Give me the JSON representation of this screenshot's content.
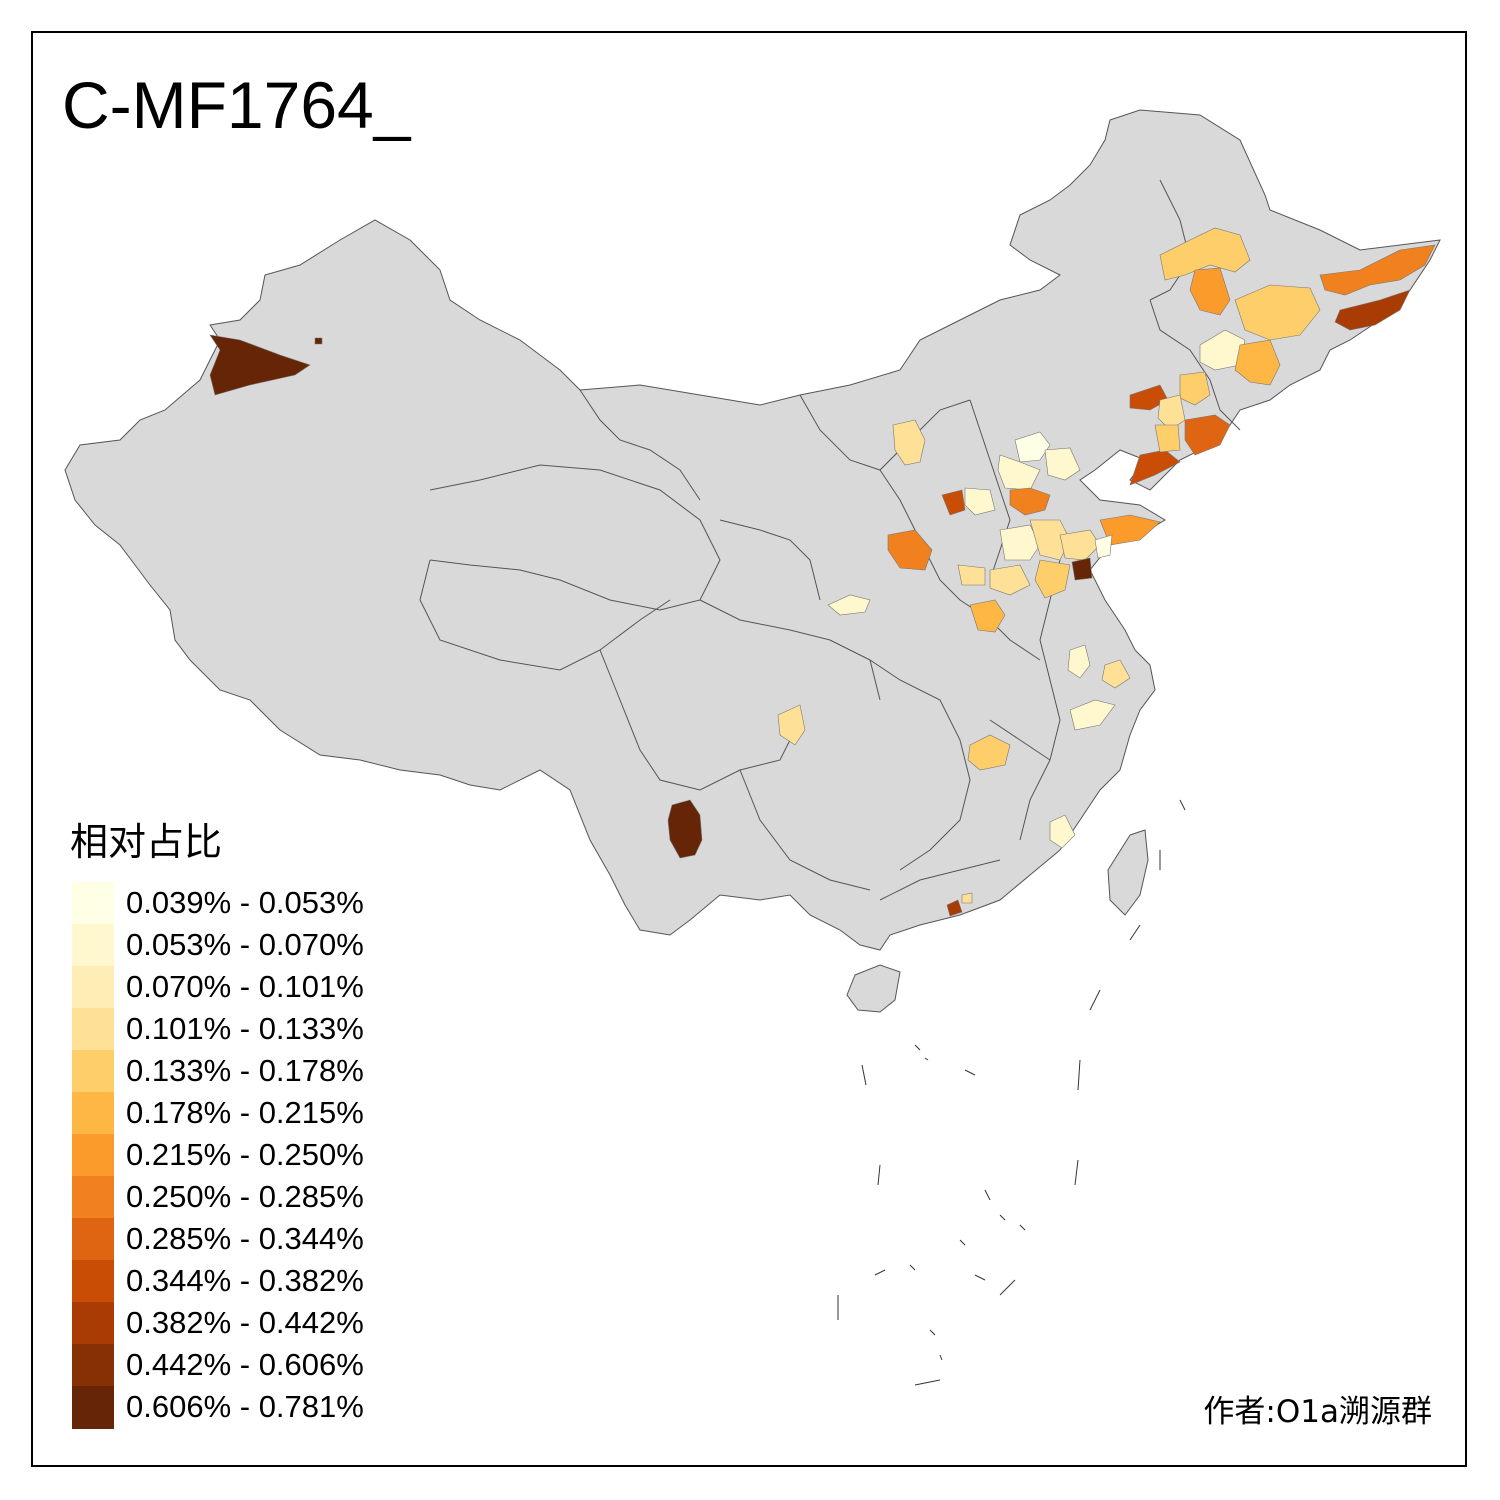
{
  "title": "C-MF1764_",
  "legend": {
    "title": "相对占比",
    "items": [
      {
        "label": "0.039% - 0.053%",
        "color": "#FFFFE5"
      },
      {
        "label": "0.053% - 0.070%",
        "color": "#FFF7CD"
      },
      {
        "label": "0.070% - 0.101%",
        "color": "#FEEDB4"
      },
      {
        "label": "0.101% - 0.133%",
        "color": "#FEE196"
      },
      {
        "label": "0.133% - 0.178%",
        "color": "#FECE6A"
      },
      {
        "label": "0.178% - 0.215%",
        "color": "#FEB645"
      },
      {
        "label": "0.215% - 0.250%",
        "color": "#FB9B2C"
      },
      {
        "label": "0.250% - 0.285%",
        "color": "#F0811E"
      },
      {
        "label": "0.285% - 0.344%",
        "color": "#E06512"
      },
      {
        "label": "0.344% - 0.382%",
        "color": "#C94D05"
      },
      {
        "label": "0.382% - 0.442%",
        "color": "#A93C04"
      },
      {
        "label": "0.442% - 0.606%",
        "color": "#873005"
      },
      {
        "label": "0.606% - 0.781%",
        "color": "#662506"
      }
    ]
  },
  "credit": "作者:O1a溯源群",
  "map": {
    "base_fill": "#D9D9D9",
    "border_color": "#555555"
  }
}
